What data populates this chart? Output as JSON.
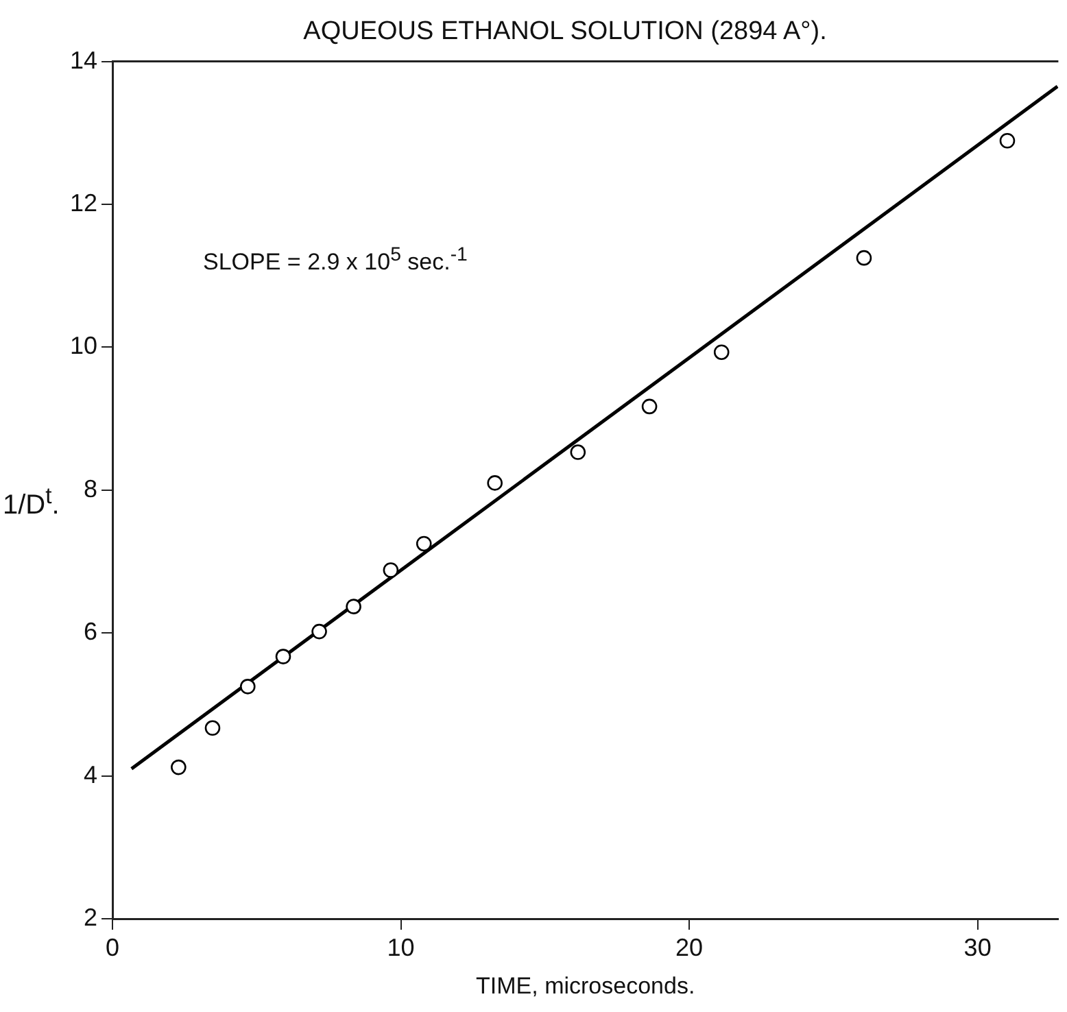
{
  "chart_data": {
    "type": "scatter",
    "title": "AQUEOUS ETHANOL SOLUTION (2894 A°).",
    "xlabel": "TIME, microseconds.",
    "ylabel": "1/D$^{t}$.",
    "annotations": [
      "SLOPE = 2.9 x 10$^{5}$ sec.$^{-1}$"
    ],
    "xlim": [
      0,
      32.8
    ],
    "ylim": [
      2,
      14
    ],
    "xticks": [
      0,
      10,
      20,
      30
    ],
    "yticks": [
      2,
      4,
      6,
      8,
      10,
      12,
      14
    ],
    "grid": false,
    "series": [
      {
        "type": "scatter",
        "color": "#000000",
        "marker": "circle",
        "x": [
          2.29,
          3.47,
          4.69,
          5.92,
          7.17,
          8.36,
          9.65,
          10.8,
          13.26,
          16.14,
          18.62,
          21.12,
          26.06,
          31.03
        ],
        "values": [
          4.12,
          4.67,
          5.25,
          5.67,
          6.02,
          6.37,
          6.88,
          7.25,
          8.1,
          8.53,
          9.17,
          9.93,
          11.25,
          12.89
        ]
      },
      {
        "type": "line",
        "color": "#000000",
        "marker": "none",
        "line_style": "solid",
        "x": [
          0.66,
          32.77
        ],
        "values": [
          4.1,
          13.65
        ]
      }
    ]
  }
}
